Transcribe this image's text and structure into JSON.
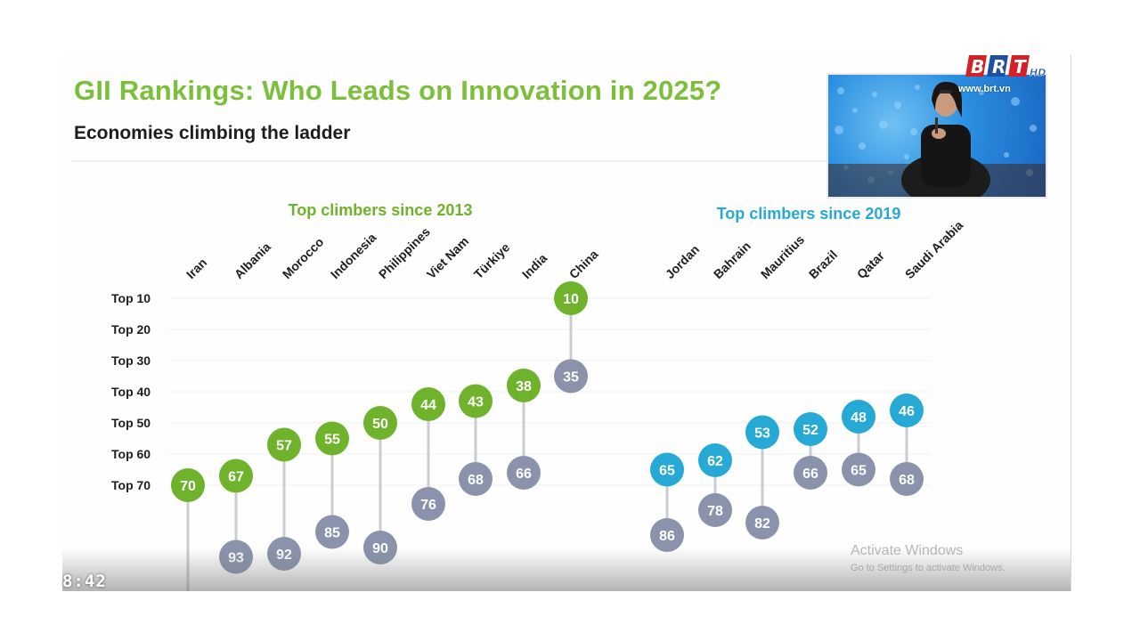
{
  "slide": {
    "title": "GII Rankings: Who Leads on Innovation in 2025?",
    "subtitle": "Economies climbing the ladder"
  },
  "chart_data": {
    "type": "scatter",
    "y_axis": {
      "ticks": [
        "Top 10",
        "Top 20",
        "Top 30",
        "Top 40",
        "Top 50",
        "Top 60",
        "Top 70"
      ],
      "tick_values": [
        10,
        20,
        30,
        40,
        50,
        60,
        70
      ],
      "inverted": true,
      "grid": true
    },
    "groups": [
      {
        "title": "Top climbers since 2013",
        "color": "#6fb22c",
        "economies": [
          {
            "name": "Iran",
            "current": 70,
            "previous": null
          },
          {
            "name": "Albania",
            "current": 67,
            "previous": 93
          },
          {
            "name": "Morocco",
            "current": 57,
            "previous": 92
          },
          {
            "name": "Indonesia",
            "current": 55,
            "previous": 85
          },
          {
            "name": "Philippines",
            "current": 50,
            "previous": 90
          },
          {
            "name": "Viet Nam",
            "current": 44,
            "previous": 76
          },
          {
            "name": "Türkiye",
            "current": 43,
            "previous": 68
          },
          {
            "name": "India",
            "current": 38,
            "previous": 66
          },
          {
            "name": "China",
            "current": 10,
            "previous": 35
          }
        ]
      },
      {
        "title": "Top climbers since 2019",
        "color": "#27a9d6",
        "economies": [
          {
            "name": "Jordan",
            "current": 65,
            "previous": 86
          },
          {
            "name": "Bahrain",
            "current": 62,
            "previous": 78
          },
          {
            "name": "Mauritius",
            "current": 53,
            "previous": 82
          },
          {
            "name": "Brazil",
            "current": 52,
            "previous": 66
          },
          {
            "name": "Qatar",
            "current": 48,
            "previous": 65
          },
          {
            "name": "Saudi Arabia",
            "current": 46,
            "previous": 68
          }
        ]
      }
    ],
    "previous_color": "#8a93ab"
  },
  "overlay": {
    "timestamp": "8:42",
    "watermark_line1": "Activate Windows",
    "watermark_line2": "Go to Settings to activate Windows.",
    "logo_text": "BRT",
    "logo_badge": "HD",
    "logo_site": "www.brt.vn"
  },
  "colors": {
    "title_green": "#7cbf3b",
    "gridline": "#eef2ee",
    "connector": "#c9ccd2"
  }
}
